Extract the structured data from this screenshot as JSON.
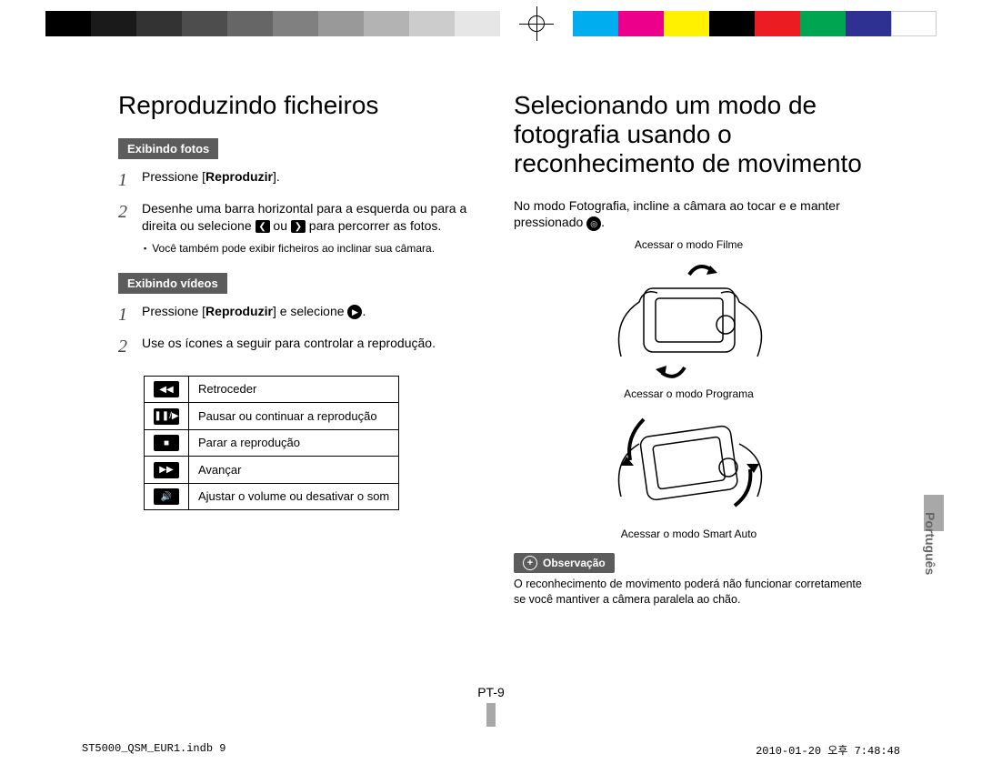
{
  "calibration": {
    "grays": [
      "#000000",
      "#1a1a1a",
      "#333333",
      "#4d4d4d",
      "#666666",
      "#808080",
      "#999999",
      "#b3b3b3",
      "#cccccc",
      "#e6e6e6"
    ],
    "colors": [
      "#00adee",
      "#ec008b",
      "#fff100",
      "#000000",
      "#ec1c23",
      "#00a551",
      "#2e3092",
      "#ffffff"
    ]
  },
  "left": {
    "title": "Reproduzindo ficheiros",
    "sec1_tag": "Exibindo fotos",
    "s1_step1_a": "Pressione [",
    "s1_step1_b": "Reproduzir",
    "s1_step1_c": "].",
    "s1_step2_a": "Desenhe uma barra horizontal para a esquerda ou para a direita ou selecione ",
    "s1_step2_b": " ou ",
    "s1_step2_c": " para percorrer as fotos.",
    "s1_note": "Você também pode exibir ficheiros ao inclinar sua câmara.",
    "sec2_tag": "Exibindo vídeos",
    "s2_step1_a": "Pressione [",
    "s2_step1_b": "Reproduzir",
    "s2_step1_c": "] e selecione ",
    "s2_step1_d": ".",
    "s2_step2": "Use os ícones a seguir para controlar a reprodução.",
    "controls": [
      {
        "icon": "◀◀",
        "label": "Retroceder"
      },
      {
        "icon": "❚❚/▶",
        "label": "Pausar ou continuar a reprodução"
      },
      {
        "icon": "■",
        "label": "Parar a reprodução"
      },
      {
        "icon": "▶▶",
        "label": "Avançar"
      },
      {
        "icon": "🔊",
        "label": "Ajustar o volume ou desativar o som"
      }
    ]
  },
  "right": {
    "title": "Selecionando um modo de fotografia usando o reconhecimento de movimento",
    "intro_a": "No modo Fotografia, incline a câmara ao tocar e e manter pressionado ",
    "intro_b": ".",
    "cap1": "Acessar o modo Filme",
    "cap2": "Acessar o modo Programa",
    "cap3": "Acessar o modo Smart Auto",
    "note_tag": "Observação",
    "note_text": "O reconhecimento de movimento poderá não funcionar corretamente se você mantiver a câmera paralela ao chão."
  },
  "side_label": "Português",
  "page_num": "PT-9",
  "footer_left": "ST5000_QSM_EUR1.indb   9",
  "footer_right": "2010-01-20   오후 7:48:48"
}
